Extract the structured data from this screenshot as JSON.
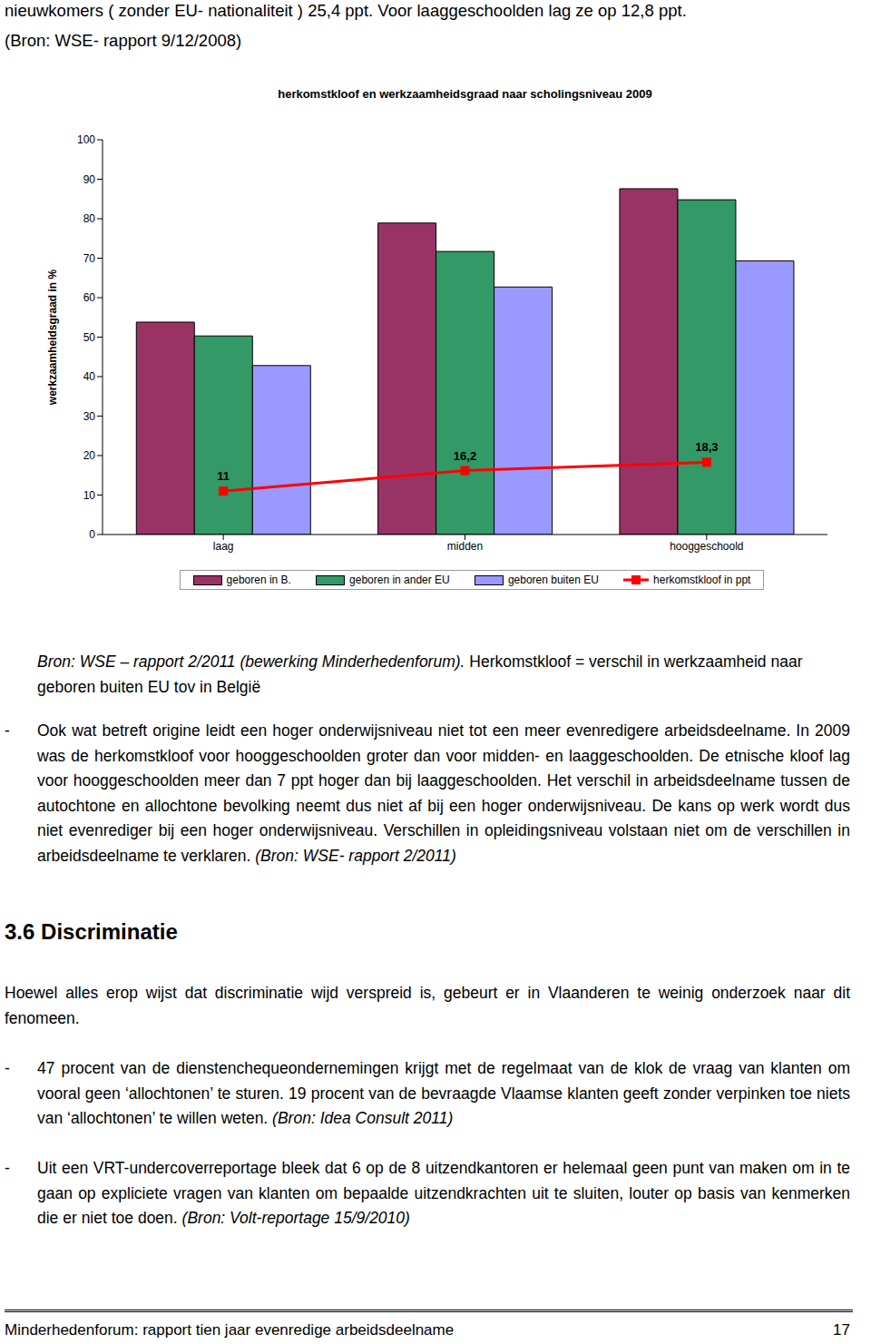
{
  "header": {
    "lines": [
      "nieuwkomers ( zonder EU- nationaliteit ) 25,4 ppt. Voor laaggeschoolden lag ze op 12,8 ppt.",
      "(Bron: WSE- rapport 9/12/2008)"
    ]
  },
  "chart_data": {
    "type": "bar",
    "title": "herkomstkloof en werkzaamheidsgraad naar scholingsniveau 2009",
    "y_label": "werkzaamheidsgraad in %",
    "categories": [
      "laag",
      "midden",
      "hooggeschoold"
    ],
    "series": [
      {
        "name": "geboren in B.",
        "color": "#993366",
        "values": [
          53.8,
          78.9,
          87.6
        ]
      },
      {
        "name": "geboren in ander EU",
        "color": "#339966",
        "values": [
          50.3,
          71.7,
          84.8
        ]
      },
      {
        "name": "geboren buiten EU",
        "color": "#9999ff",
        "values": [
          42.8,
          62.7,
          69.3
        ]
      },
      {
        "name": "herkomstkloof in ppt",
        "type": "line",
        "marker": "square",
        "color": "#ff0000",
        "values": [
          11,
          16.2,
          18.3
        ],
        "data_labels": true,
        "value_labels": [
          "11",
          "16,2",
          "18,3"
        ]
      }
    ],
    "ylim": [
      0,
      100
    ],
    "yticks": [
      0,
      10,
      20,
      30,
      40,
      50,
      60,
      70,
      80,
      90,
      100
    ],
    "grid": false,
    "legend": "bottom"
  },
  "source": {
    "citation": "Bron: WSE – rapport 2/2011 (bewerking Minderhedenforum).",
    "note": "Herkomstkloof = verschil in werkzaamheid naar geboren buiten EU tov in België"
  },
  "bullets_1": [
    {
      "bullet": "-",
      "text": "Ook wat betreft origine leidt een hoger onderwijsniveau niet tot een meer evenredigere arbeidsdeelname. In 2009 was de herkomstkloof voor hooggeschoolden groter dan voor midden- en laaggeschoolden. De etnische kloof lag voor hooggeschoolden meer dan 7 ppt hoger dan bij laaggeschoolden. Het verschil in arbeidsdeelname tussen de autochtone en allochtone bevolking neemt dus niet af bij een hoger onderwijsniveau. De kans op werk wordt dus niet evenrediger bij een hoger onderwijsniveau. Verschillen in opleidingsniveau volstaan niet om de verschillen in arbeidsdeelname te verklaren.",
      "source": "(Bron: WSE- rapport 2/2011)"
    }
  ],
  "section": {
    "number": "3.6",
    "title": "Discriminatie",
    "paragraph": "Hoewel alles erop wijst dat discriminatie wijd verspreid is, gebeurt er in Vlaanderen te weinig onderzoek naar dit fenomeen.",
    "bullets": [
      {
        "bullet": "-",
        "text": "47 procent van de dienstenchequeondernemingen krijgt met de regelmaat van de klok de vraag van klanten om vooral geen ‘allochtonen’ te sturen. 19 procent van de bevraagde Vlaamse klanten geeft zonder verpinken toe niets van ‘allochtonen’ te willen weten.",
        "source": "(Bron: Idea Consult 2011)"
      },
      {
        "bullet": "-",
        "text": "Uit een VRT-undercoverreportage bleek dat 6 op de 8 uitzendkantoren er helemaal geen punt van maken om in te gaan op expliciete vragen van klanten om bepaalde uitzendkrachten uit te sluiten, louter op basis van kenmerken die er niet toe doen.",
        "source": "(Bron: Volt-reportage 15/9/2010)"
      }
    ]
  },
  "footer": {
    "left": "Minderhedenforum: rapport tien jaar evenredige arbeidsdeelname",
    "page": "17"
  }
}
